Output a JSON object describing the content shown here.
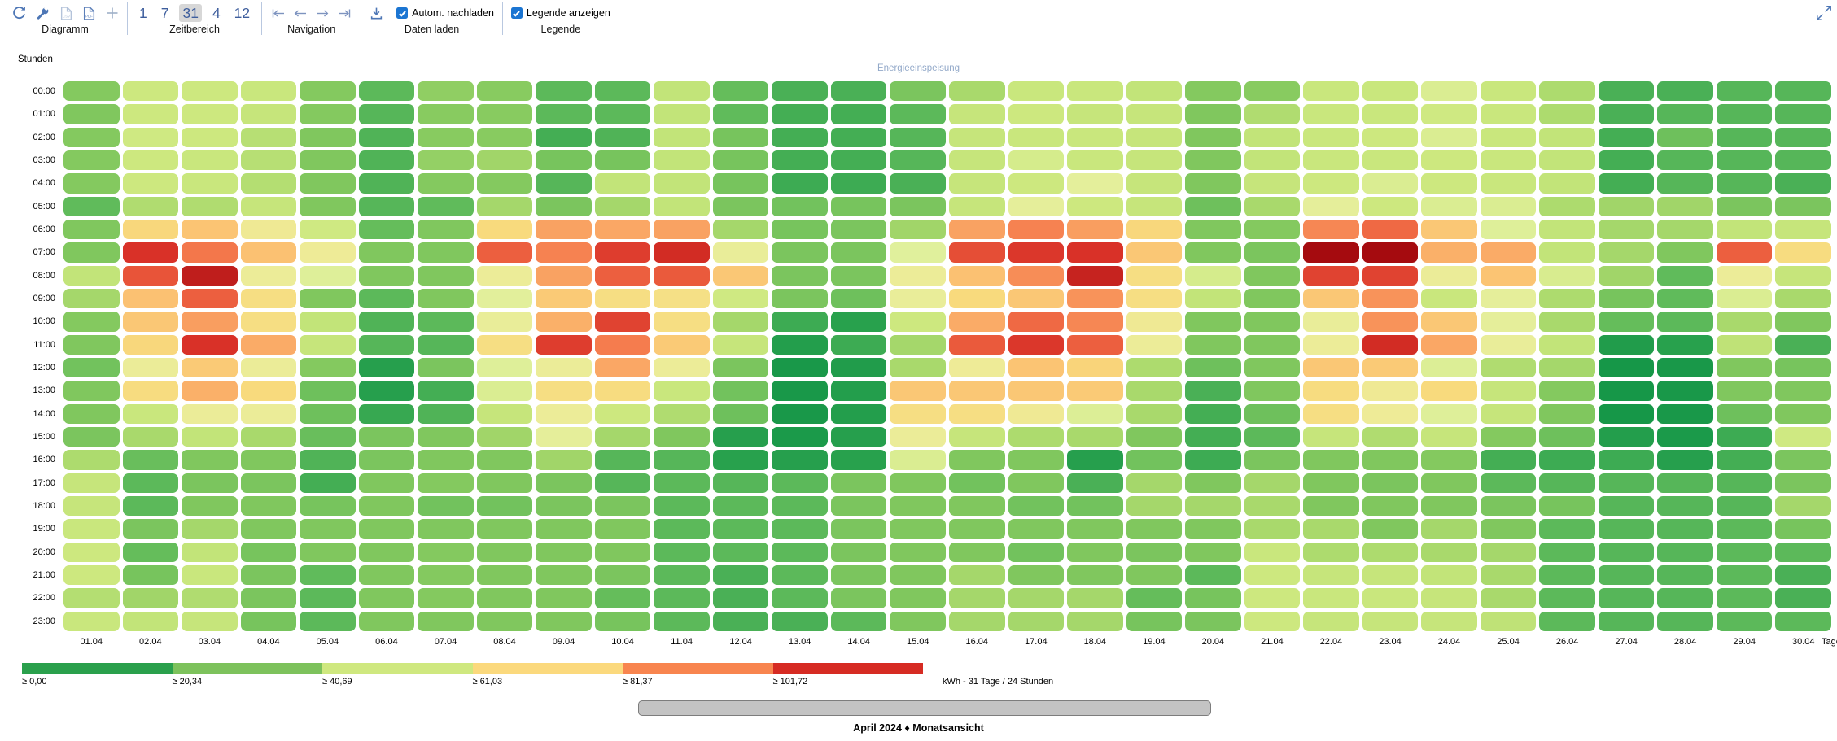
{
  "toolbar": {
    "diagramm": {
      "caption": "Diagramm"
    },
    "zeitbereich": {
      "caption": "Zeitbereich",
      "buttons": [
        "1",
        "7",
        "31",
        "4",
        "12"
      ],
      "selected": "31"
    },
    "navigation": {
      "caption": "Navigation"
    },
    "daten_laden": {
      "caption": "Daten laden",
      "checkbox_label": "Autom. nachladen",
      "checked": true
    },
    "legende": {
      "caption": "Legende",
      "checkbox_label": "Legende anzeigen",
      "checked": true
    }
  },
  "chart": {
    "title": "Energieeinspeisung",
    "y_axis_title": "Stunden",
    "x_axis_title": "Tage"
  },
  "chart_data": {
    "type": "heatmap",
    "title": "Energieeinspeisung",
    "unit": "kWh",
    "x_labels": [
      "01.04",
      "02.04",
      "03.04",
      "04.04",
      "05.04",
      "06.04",
      "07.04",
      "08.04",
      "09.04",
      "10.04",
      "11.04",
      "12.04",
      "13.04",
      "14.04",
      "15.04",
      "16.04",
      "17.04",
      "18.04",
      "19.04",
      "20.04",
      "21.04",
      "22.04",
      "23.04",
      "24.04",
      "25.04",
      "26.04",
      "27.04",
      "28.04",
      "29.04",
      "30.04"
    ],
    "y_labels": [
      "00:00",
      "01:00",
      "02:00",
      "03:00",
      "04:00",
      "05:00",
      "06:00",
      "07:00",
      "08:00",
      "09:00",
      "10:00",
      "11:00",
      "12:00",
      "13:00",
      "14:00",
      "15:00",
      "16:00",
      "17:00",
      "18:00",
      "19:00",
      "20:00",
      "21:00",
      "22:00",
      "23:00"
    ],
    "values": [
      [
        27,
        46,
        46,
        45,
        27,
        18,
        30,
        28,
        18,
        18,
        43,
        20,
        15,
        15,
        25,
        36,
        45,
        45,
        43,
        27,
        28,
        45,
        45,
        52,
        45,
        37,
        15,
        15,
        17,
        17
      ],
      [
        26,
        46,
        46,
        44,
        27,
        17,
        28,
        28,
        18,
        18,
        43,
        19,
        14,
        14,
        18,
        44,
        46,
        44,
        44,
        26,
        38,
        45,
        45,
        47,
        45,
        37,
        15,
        17,
        17,
        17
      ],
      [
        27,
        47,
        46,
        40,
        26,
        16,
        28,
        28,
        14,
        16,
        43,
        24,
        14,
        14,
        17,
        44,
        45,
        45,
        44,
        26,
        43,
        45,
        46,
        52,
        45,
        43,
        14,
        22,
        17,
        17
      ],
      [
        27,
        46,
        45,
        40,
        26,
        16,
        31,
        34,
        24,
        24,
        43,
        24,
        14,
        14,
        17,
        44,
        50,
        45,
        44,
        26,
        43,
        45,
        45,
        46,
        45,
        43,
        14,
        17,
        17,
        17
      ],
      [
        27,
        46,
        45,
        39,
        26,
        16,
        27,
        27,
        17,
        43,
        43,
        24,
        13,
        13,
        15,
        44,
        46,
        57,
        44,
        26,
        44,
        46,
        52,
        46,
        45,
        43,
        14,
        17,
        17,
        15
      ],
      [
        19,
        38,
        38,
        44,
        26,
        17,
        19,
        35,
        25,
        35,
        43,
        25,
        23,
        24,
        25,
        44,
        58,
        46,
        44,
        22,
        36,
        58,
        46,
        52,
        52,
        37,
        34,
        34,
        25,
        25
      ],
      [
        26,
        73,
        79,
        64,
        47,
        20,
        26,
        72,
        87,
        86,
        87,
        35,
        24,
        25,
        34,
        87,
        93,
        88,
        73,
        26,
        27,
        92,
        98,
        78,
        54,
        43,
        35,
        35,
        43,
        44
      ],
      [
        26,
        108,
        95,
        80,
        63,
        26,
        26,
        100,
        93,
        106,
        110,
        60,
        25,
        25,
        55,
        103,
        107,
        108,
        78,
        26,
        25,
        122,
        122,
        84,
        85,
        43,
        35,
        26,
        100,
        71
      ],
      [
        43,
        102,
        115,
        62,
        54,
        26,
        26,
        62,
        87,
        100,
        101,
        78,
        25,
        25,
        62,
        80,
        91,
        113,
        70,
        50,
        26,
        105,
        105,
        61,
        79,
        51,
        34,
        19,
        62,
        44
      ],
      [
        35,
        80,
        100,
        70,
        26,
        18,
        26,
        56,
        77,
        70,
        69,
        47,
        25,
        22,
        60,
        72,
        78,
        90,
        70,
        43,
        26,
        78,
        90,
        45,
        58,
        37,
        24,
        19,
        52,
        36
      ],
      [
        27,
        78,
        88,
        70,
        43,
        16,
        18,
        60,
        84,
        105,
        70,
        35,
        13,
        9,
        46,
        85,
        98,
        92,
        64,
        26,
        26,
        60,
        90,
        78,
        58,
        36,
        20,
        18,
        36,
        26
      ],
      [
        26,
        73,
        108,
        85,
        44,
        17,
        17,
        70,
        106,
        94,
        77,
        44,
        7,
        13,
        35,
        101,
        107,
        100,
        62,
        26,
        26,
        62,
        110,
        86,
        60,
        43,
        6,
        9,
        42,
        15
      ],
      [
        23,
        61,
        77,
        61,
        27,
        8,
        25,
        54,
        61,
        86,
        62,
        25,
        3,
        6,
        36,
        63,
        79,
        74,
        37,
        22,
        26,
        78,
        77,
        53,
        38,
        35,
        2,
        3,
        26,
        24
      ],
      [
        26,
        71,
        84,
        72,
        22,
        8,
        14,
        52,
        70,
        71,
        45,
        23,
        3,
        7,
        78,
        78,
        78,
        77,
        36,
        15,
        26,
        71,
        64,
        72,
        44,
        27,
        2,
        3,
        26,
        26
      ],
      [
        26,
        45,
        61,
        61,
        22,
        12,
        16,
        44,
        62,
        46,
        38,
        22,
        3,
        7,
        70,
        70,
        64,
        53,
        36,
        14,
        22,
        70,
        63,
        54,
        44,
        26,
        2,
        3,
        22,
        26
      ],
      [
        25,
        36,
        43,
        36,
        21,
        25,
        26,
        34,
        58,
        35,
        26,
        8,
        4,
        8,
        61,
        44,
        37,
        36,
        26,
        14,
        18,
        44,
        38,
        44,
        27,
        22,
        7,
        4,
        13,
        47
      ],
      [
        37,
        21,
        26,
        26,
        16,
        25,
        26,
        26,
        34,
        17,
        17,
        9,
        8,
        9,
        52,
        26,
        26,
        8,
        23,
        13,
        25,
        26,
        26,
        27,
        14,
        13,
        13,
        8,
        14,
        25
      ],
      [
        44,
        18,
        25,
        25,
        14,
        26,
        27,
        26,
        25,
        17,
        18,
        17,
        18,
        25,
        26,
        23,
        26,
        15,
        35,
        26,
        35,
        26,
        25,
        26,
        18,
        17,
        17,
        17,
        17,
        25
      ],
      [
        44,
        18,
        26,
        26,
        24,
        26,
        23,
        23,
        25,
        25,
        18,
        18,
        18,
        25,
        26,
        26,
        23,
        23,
        35,
        35,
        36,
        26,
        26,
        26,
        25,
        24,
        17,
        17,
        17,
        35
      ],
      [
        45,
        25,
        35,
        26,
        26,
        26,
        26,
        26,
        26,
        26,
        18,
        18,
        18,
        25,
        26,
        26,
        26,
        26,
        26,
        26,
        36,
        36,
        26,
        35,
        26,
        18,
        17,
        17,
        18,
        24
      ],
      [
        46,
        20,
        43,
        24,
        26,
        26,
        27,
        26,
        26,
        26,
        18,
        18,
        18,
        25,
        26,
        26,
        23,
        26,
        25,
        26,
        45,
        37,
        37,
        36,
        35,
        18,
        17,
        17,
        18,
        18
      ],
      [
        46,
        24,
        45,
        25,
        19,
        26,
        27,
        26,
        26,
        25,
        18,
        15,
        18,
        25,
        26,
        35,
        26,
        26,
        26,
        18,
        46,
        44,
        44,
        43,
        36,
        18,
        17,
        17,
        18,
        15
      ],
      [
        39,
        34,
        38,
        25,
        18,
        26,
        27,
        26,
        26,
        20,
        18,
        15,
        18,
        25,
        26,
        35,
        35,
        35,
        20,
        24,
        46,
        45,
        45,
        44,
        36,
        18,
        17,
        17,
        18,
        15
      ],
      [
        45,
        43,
        44,
        24,
        18,
        26,
        26,
        26,
        26,
        24,
        18,
        15,
        15,
        18,
        26,
        35,
        35,
        35,
        24,
        25,
        46,
        44,
        44,
        44,
        42,
        18,
        17,
        17,
        18,
        18
      ]
    ],
    "color_scale": {
      "anchors": [
        {
          "v": 0,
          "c": "#119447"
        },
        {
          "v": 10,
          "c": "#2ba24e"
        },
        {
          "v": 18,
          "c": "#5cb95a"
        },
        {
          "v": 27,
          "c": "#84c95f"
        },
        {
          "v": 36,
          "c": "#a9d96c"
        },
        {
          "v": 46,
          "c": "#cde87f"
        },
        {
          "v": 55,
          "c": "#e0f09c"
        },
        {
          "v": 63,
          "c": "#eeeb97"
        },
        {
          "v": 72,
          "c": "#f8da7d"
        },
        {
          "v": 80,
          "c": "#fbc172"
        },
        {
          "v": 88,
          "c": "#f99e60"
        },
        {
          "v": 94,
          "c": "#f57c4e"
        },
        {
          "v": 101,
          "c": "#ea5a3c"
        },
        {
          "v": 108,
          "c": "#d93128"
        },
        {
          "v": 122,
          "c": "#a50b0f"
        }
      ]
    },
    "legend": {
      "thresholds": [
        "≥ 0,00",
        "≥ 20,34",
        "≥ 40,69",
        "≥ 61,03",
        "≥ 81,37",
        "≥ 101,72"
      ],
      "colors": [
        "#2aa04c",
        "#7dc25c",
        "#cfe87f",
        "#fbd97d",
        "#f8854f",
        "#d62b23"
      ],
      "note": "kWh - 31 Tage / 24 Stunden",
      "position": "bottom-left"
    }
  },
  "footer": {
    "label": "April 2024 ♦ Monatsansicht"
  },
  "icons": {
    "refresh": "refresh-icon",
    "wrench": "settings-wrench-icon",
    "csv": "export-csv-icon",
    "pdf": "export-pdf-icon",
    "plus": "add-icon",
    "first": "go-first-icon",
    "prev": "go-previous-icon",
    "next": "go-next-icon",
    "last": "go-last-icon",
    "download": "download-data-icon",
    "expand": "expand-icon"
  },
  "colors": {
    "accent_blue": "#4d76b5",
    "checkbox_blue": "#1b75d2",
    "separator": "#b9c8e0"
  }
}
